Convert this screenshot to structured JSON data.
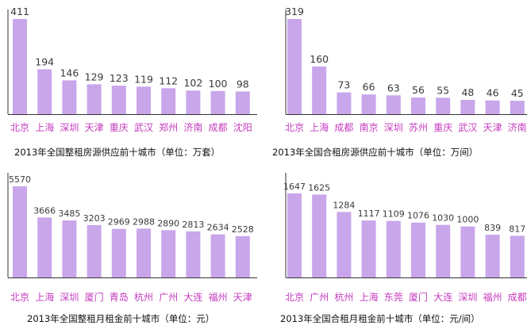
{
  "colors": {
    "bar": "#c9a6ea",
    "axis": "#333333",
    "category_text": "#c43bbd",
    "value_text": "#3a3a3a"
  },
  "chart_data": [
    {
      "type": "bar",
      "title": "2013年全国整租房源供应前十城市（单位：万套）",
      "categories": [
        "北京",
        "上海",
        "深圳",
        "天津",
        "重庆",
        "武汉",
        "郑州",
        "济南",
        "成都",
        "沈阳"
      ],
      "values": [
        411,
        194,
        146,
        129,
        123,
        119,
        112,
        102,
        100,
        98
      ],
      "value_labels": [
        "411",
        "194",
        "146",
        "129",
        "123",
        "119",
        "112",
        "102",
        "100",
        "98"
      ],
      "xlabel": "",
      "ylabel": "",
      "ylim": [
        0,
        411
      ],
      "grid": false,
      "legend": "none"
    },
    {
      "type": "bar",
      "title": "2013年全国合租房源供应前十城市（单位：万间）",
      "categories": [
        "北京",
        "上海",
        "成都",
        "南京",
        "深圳",
        "苏州",
        "重庆",
        "武汉",
        "天津",
        "济南"
      ],
      "values": [
        319,
        160,
        73,
        66,
        63,
        56,
        55,
        48,
        46,
        45
      ],
      "value_labels": [
        "319",
        "160",
        "73",
        "66",
        "63",
        "56",
        "55",
        "48",
        "46",
        "45"
      ],
      "xlabel": "",
      "ylabel": "",
      "ylim": [
        0,
        319
      ],
      "grid": false,
      "legend": "none"
    },
    {
      "type": "bar",
      "title": "2013年全国整租月租金前十城市（单位：元）",
      "categories": [
        "北京",
        "上海",
        "深圳",
        "厦门",
        "青岛",
        "杭州",
        "广州",
        "大连",
        "福州",
        "天津"
      ],
      "values": [
        5570,
        3666,
        3485,
        3203,
        2969,
        2988,
        2890,
        2813,
        2634,
        2528
      ],
      "value_labels": [
        "5570",
        "3666",
        "3485",
        "3203",
        "2969",
        "2988",
        "2890",
        "2813",
        "2634",
        "2528"
      ],
      "xlabel": "",
      "ylabel": "",
      "ylim": [
        0,
        5570
      ],
      "grid": false,
      "legend": "none"
    },
    {
      "type": "bar",
      "title": "2013年全国合租月租金前十城市（单位：元/间）",
      "categories": [
        "北京",
        "广州",
        "杭州",
        "上海",
        "东莞",
        "厦门",
        "大连",
        "深圳",
        "福州",
        "成都"
      ],
      "values": [
        1647,
        1625,
        1284,
        1117,
        1109,
        1076,
        1030,
        1000,
        839,
        817
      ],
      "value_labels": [
        "1647",
        "1625",
        "1284",
        "1117",
        "1109",
        "1076",
        "1030",
        "1000",
        "839",
        "817"
      ],
      "xlabel": "",
      "ylabel": "",
      "ylim": [
        0,
        1647
      ],
      "grid": false,
      "legend": "none"
    }
  ]
}
